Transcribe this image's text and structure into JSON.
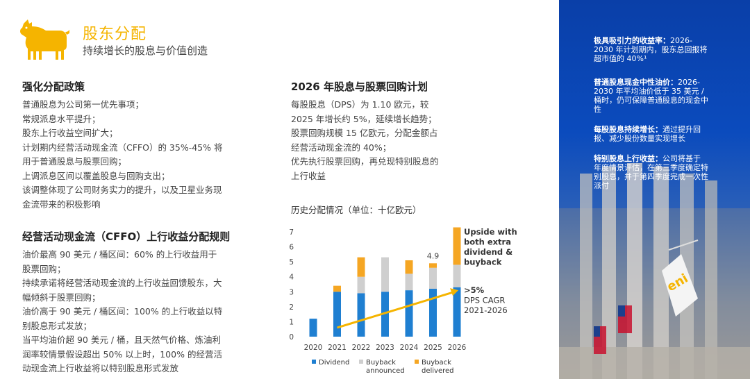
{
  "header": {
    "title": "股东分配",
    "subtitle": "持续增长的股息与价值创造"
  },
  "left": {
    "section1_title": "强化分配政策",
    "section1_lines": [
      "普通股息为公司第一优先事项；",
      "常规派息水平提升；",
      "股东上行收益空间扩大；",
      "计划期内经营活动现金流（CFFO）的 35%-45% 将",
      "用于普通股息与股票回购；",
      "上调派息区间以覆盖股息与回购支出；",
      "该调整体现了公司财务实力的提升，以及卫星业务现",
      "金流带来的积极影响"
    ],
    "section2_title": "经营活动现金流（CFFO）上行收益分配规则",
    "section2_lines": [
      "油价最高 90 美元 / 桶区间：60% 的上行收益用于",
      "股票回购；",
      "持续承诺将经营活动现金流的上行收益回馈股东，大",
      "幅倾斜于股票回购；",
      "油价高于 90 美元 / 桶区间：100% 的上行收益以特",
      "别股息形式发放；",
      "当平均油价超 90 美元 / 桶，且天然气价格、炼油利",
      "润率较情景假设超出 50% 以上时，100% 的经营活",
      "动现金流上行收益将以特别股息形式发放"
    ]
  },
  "mid": {
    "title": "2026 年股息与股票回购计划",
    "lines": [
      "每股股息（DPS）为 1.10 欧元，较",
      "2025 年增长约 5%，延续增长趋势；",
      "股票回购规模 15 亿欧元，分配金额占",
      "经营活动现金流的 40%；",
      "优先执行股票回购，再兑现特别股息的",
      "上行收益"
    ],
    "chart_title": "历史分配情况（单位：十亿欧元）"
  },
  "chart_data": {
    "type": "bar",
    "stacked": true,
    "categories": [
      "2020",
      "2021",
      "2022",
      "2023",
      "2024",
      "2025",
      "2026"
    ],
    "series": [
      {
        "name": "Dividend",
        "color": "#1f7fd1",
        "values": [
          1.2,
          3.0,
          2.9,
          3.0,
          3.1,
          3.2,
          3.3
        ]
      },
      {
        "name": "Buyback announced",
        "color": "#cfcfcf",
        "values": [
          0,
          0,
          1.1,
          2.3,
          1.1,
          1.4,
          1.5
        ]
      },
      {
        "name": "Buyback delivered",
        "color": "#f5a623",
        "values": [
          0,
          0.4,
          1.3,
          0,
          0.9,
          0.3,
          2.5
        ]
      }
    ],
    "yticks": [
      "0",
      "1",
      "2",
      "3",
      "4",
      "5",
      "6",
      "7"
    ],
    "ylim": [
      0,
      7
    ],
    "value_label": {
      "category": "2025",
      "text": "4.9"
    },
    "annotations": {
      "upside": [
        "Upside with",
        "both extra",
        "dividend &",
        "buyback"
      ],
      "cagr": [
        ">5%",
        "DPS CAGR",
        "2021-2026"
      ]
    },
    "legend": [
      {
        "label": [
          "Dividend"
        ],
        "color": "#1f7fd1"
      },
      {
        "label": [
          "Buyback",
          "announced"
        ],
        "color": "#cfcfcf"
      },
      {
        "label": [
          "Buyback",
          "delivered"
        ],
        "color": "#f5a623"
      }
    ],
    "trend_color": "#f5b400"
  },
  "right_panel": {
    "items": [
      {
        "head": "极具吸引力的收益率：",
        "lines": [
          "2026-",
          "2030 年计划期内，股东总回报将",
          "超市值的 40%¹"
        ]
      },
      {
        "head": "普通股息现金中性油价：",
        "lines": [
          "2026-",
          "2030 年平均油价低于 35 美元 /",
          "桶时，仍可保障普通股息的现金中",
          "性"
        ]
      },
      {
        "head": "每股股息持续增长：",
        "lines": [
          "通过提升回",
          "报、减少股份数量实现增长"
        ]
      },
      {
        "head": "特别股息上行收益：",
        "lines": [
          "公司将基于",
          "年度情景评估，在第三季度确定特",
          "别股息，并于第四季度完成一次性",
          "派付"
        ]
      }
    ]
  },
  "colors": {
    "accent": "#f5b400",
    "panel_blue": "#0b4bbd"
  }
}
